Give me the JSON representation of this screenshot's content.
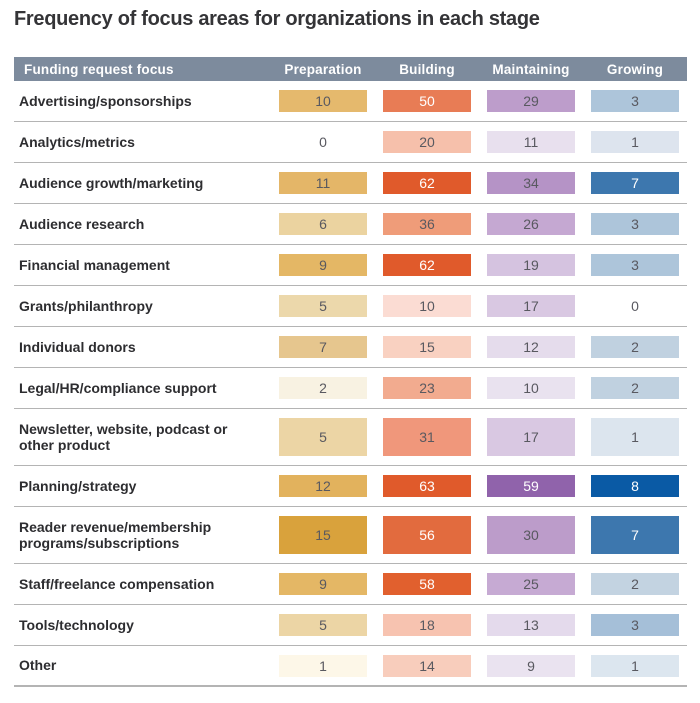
{
  "title": "Frequency of focus areas for organizations in each stage",
  "chart_data": {
    "type": "heatmap",
    "title": "Frequency of focus areas for organizations in each stage",
    "row_header": "Funding request focus",
    "columns": [
      "Preparation",
      "Building",
      "Maintaining",
      "Growing"
    ],
    "legend_position": "none",
    "grid": "horizontal-separators",
    "header_bg": "#7d8b9d",
    "column_hues": {
      "Preparation": "#d9a23c",
      "Building": "#e05a2b",
      "Maintaining": "#9063ab",
      "Growing": "#0a5aa5"
    },
    "rows": [
      {
        "label": "Advertising/sponsorships",
        "values": [
          10,
          50,
          29,
          3
        ],
        "bg": [
          "#e5b96d",
          "#e87c55",
          "#bd9dcb",
          "#adc5da"
        ],
        "light": [
          false,
          true,
          false,
          false
        ],
        "tall": false
      },
      {
        "label": "Analytics/metrics",
        "values": [
          0,
          20,
          11,
          1
        ],
        "bg": [
          null,
          "#f6c0ab",
          "#e8e0ee",
          "#dde4ee"
        ],
        "light": [
          false,
          false,
          false,
          false
        ],
        "tall": false
      },
      {
        "label": "Audience growth/marketing",
        "values": [
          11,
          62,
          34,
          7
        ],
        "bg": [
          "#e4b668",
          "#e05a2b",
          "#b593c6",
          "#3d77ae"
        ],
        "light": [
          false,
          true,
          false,
          true
        ],
        "tall": false
      },
      {
        "label": "Audience research",
        "values": [
          6,
          36,
          26,
          3
        ],
        "bg": [
          "#ebd3a0",
          "#ef9c79",
          "#c5a8d2",
          "#adc5da"
        ],
        "light": [
          false,
          false,
          false,
          false
        ],
        "tall": false
      },
      {
        "label": "Financial management",
        "values": [
          9,
          62,
          19,
          3
        ],
        "bg": [
          "#e4b765",
          "#e05a2b",
          "#d5c3e0",
          "#adc5da"
        ],
        "light": [
          false,
          true,
          false,
          false
        ],
        "tall": false
      },
      {
        "label": "Grants/philanthropy",
        "values": [
          5,
          10,
          17,
          0
        ],
        "bg": [
          "#ecd8ab",
          "#fbdcd3",
          "#d9c8e2",
          null
        ],
        "light": [
          false,
          false,
          false,
          false
        ],
        "tall": false
      },
      {
        "label": "Individual donors",
        "values": [
          7,
          15,
          12,
          2
        ],
        "bg": [
          "#e6c68e",
          "#f9d1c1",
          "#e5dcec",
          "#c0d1e0"
        ],
        "light": [
          false,
          false,
          false,
          false
        ],
        "tall": false
      },
      {
        "label": "Legal/HR/compliance support",
        "values": [
          2,
          23,
          10,
          2
        ],
        "bg": [
          "#f8f2e2",
          "#f2ab8f",
          "#e9e2ef",
          "#c0d1e0"
        ],
        "light": [
          false,
          false,
          false,
          false
        ],
        "tall": false
      },
      {
        "label": "Newsletter, website, podcast or other product",
        "values": [
          5,
          31,
          17,
          1
        ],
        "bg": [
          "#ecd5a5",
          "#f0977b",
          "#d9c8e2",
          "#dce5ee"
        ],
        "light": [
          false,
          false,
          false,
          false
        ],
        "tall": true
      },
      {
        "label": "Planning/strategy",
        "values": [
          12,
          63,
          59,
          8
        ],
        "bg": [
          "#e2b25d",
          "#e05a2b",
          "#9063ab",
          "#0a5aa5"
        ],
        "light": [
          false,
          true,
          true,
          true
        ],
        "tall": false
      },
      {
        "label": "Reader revenue/membership programs/subscriptions",
        "values": [
          15,
          56,
          30,
          7
        ],
        "bg": [
          "#d9a23c",
          "#e26b3e",
          "#bc9cca",
          "#3d77ae"
        ],
        "light": [
          false,
          true,
          false,
          true
        ],
        "tall": true
      },
      {
        "label": "Staff/freelance compensation",
        "values": [
          9,
          58,
          25,
          2
        ],
        "bg": [
          "#e4b765",
          "#e1602e",
          "#c6aad3",
          "#c3d3e1"
        ],
        "light": [
          false,
          true,
          false,
          false
        ],
        "tall": false
      },
      {
        "label": "Tools/technology",
        "values": [
          5,
          18,
          13,
          3
        ],
        "bg": [
          "#ecd5a5",
          "#f7c3b0",
          "#e4daec",
          "#a5bfd8"
        ],
        "light": [
          false,
          false,
          false,
          false
        ],
        "tall": false
      },
      {
        "label": "Other",
        "values": [
          1,
          14,
          9,
          1
        ],
        "bg": [
          "#fdf7e8",
          "#f8cdbc",
          "#eae3f0",
          "#dce6ef"
        ],
        "light": [
          false,
          false,
          false,
          false
        ],
        "tall": false
      }
    ]
  }
}
